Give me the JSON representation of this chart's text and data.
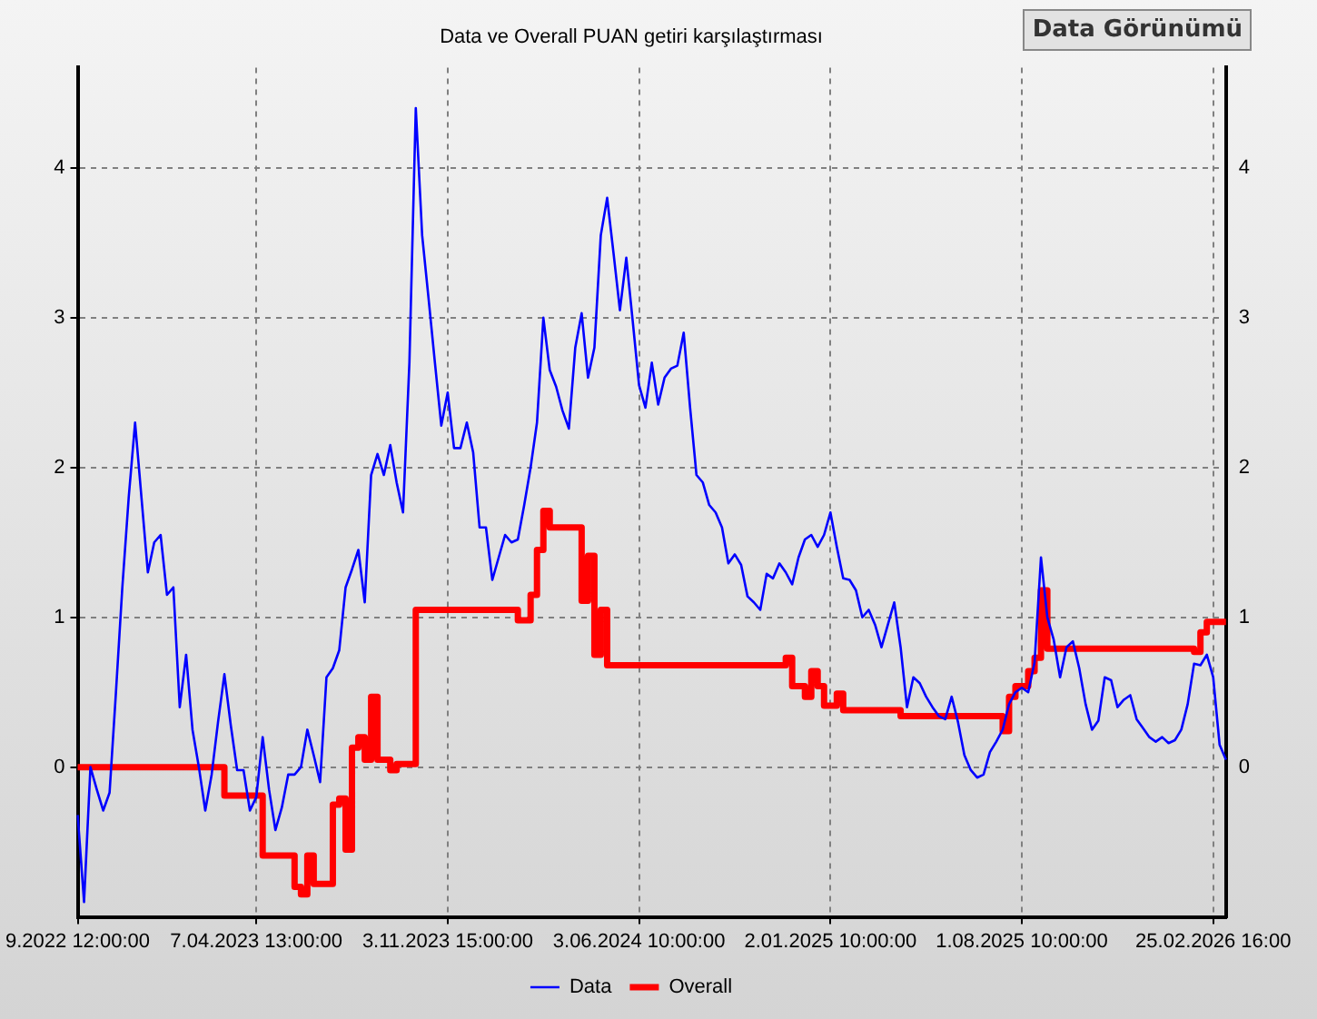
{
  "chart_data": {
    "type": "line",
    "title": "Data ve Overall PUAN getiri karşılaştırması",
    "annotations": [
      "Data Görünümü"
    ],
    "categories": [
      "9.2022 12:00:00",
      null,
      null,
      null,
      null,
      null,
      null,
      null,
      null,
      null,
      null,
      null,
      null,
      null,
      null,
      null,
      null,
      null,
      null,
      null,
      null,
      null,
      null,
      null,
      null,
      null,
      null,
      null,
      "7.04.2023 13:00:00",
      null,
      null,
      null,
      null,
      null,
      null,
      null,
      null,
      null,
      null,
      null,
      null,
      null,
      null,
      null,
      null,
      null,
      null,
      null,
      null,
      null,
      null,
      null,
      null,
      null,
      null,
      null,
      null,
      null,
      "3.11.2023 15:00:00",
      null,
      null,
      null,
      null,
      null,
      null,
      null,
      null,
      null,
      null,
      null,
      null,
      null,
      null,
      null,
      null,
      null,
      null,
      null,
      null,
      null,
      null,
      null,
      null,
      null,
      null,
      null,
      null,
      null,
      "3.06.2024 10:00:00",
      null,
      null,
      null,
      null,
      null,
      null,
      null,
      null,
      null,
      null,
      null,
      null,
      null,
      null,
      null,
      null,
      null,
      null,
      null,
      null,
      null,
      null,
      null,
      null,
      null,
      null,
      null,
      null,
      null,
      "2.01.2025 10:00:00",
      null,
      null,
      null,
      null,
      null,
      null,
      null,
      null,
      null,
      null,
      null,
      null,
      null,
      null,
      null,
      null,
      null,
      null,
      null,
      null,
      null,
      null,
      null,
      null,
      null,
      null,
      null,
      null,
      null,
      "1.08.2025 10:00:00",
      null,
      null,
      null,
      null,
      null,
      null,
      null,
      null,
      null,
      null,
      null,
      null,
      null,
      null,
      null,
      null,
      null,
      null,
      null,
      null,
      null,
      null,
      null,
      null,
      null,
      null,
      null,
      null,
      null,
      "25.02.2026 16:00",
      null,
      null
    ],
    "ylim": [
      -1,
      4.67
    ],
    "yticks": [
      0,
      1,
      2,
      3,
      4
    ],
    "y2lim": [
      -1,
      4.67
    ],
    "y2ticks": [
      0,
      1,
      2,
      3,
      4
    ],
    "grid": true,
    "legend": "bottom",
    "line_style": "solid",
    "marker": "none",
    "series": [
      {
        "name": "Data",
        "color": "#0000ff",
        "type": "line",
        "values": [
          -0.32,
          -0.9,
          0.0,
          -0.15,
          -0.29,
          -0.17,
          0.5,
          1.2,
          1.8,
          2.3,
          1.8,
          1.3,
          1.5,
          1.55,
          1.15,
          1.2,
          0.4,
          0.75,
          0.25,
          0.0,
          -0.29,
          -0.05,
          0.3,
          0.62,
          0.28,
          -0.02,
          -0.02,
          -0.29,
          -0.2,
          0.2,
          -0.15,
          -0.42,
          -0.27,
          -0.05,
          -0.05,
          0.0,
          0.25,
          0.08,
          -0.1,
          0.6,
          0.66,
          0.78,
          1.2,
          1.32,
          1.45,
          1.1,
          1.95,
          2.09,
          1.95,
          2.15,
          1.9,
          1.7,
          2.7,
          4.4,
          3.55,
          3.13,
          2.7,
          2.28,
          2.5,
          2.13,
          2.13,
          2.3,
          2.1,
          1.6,
          1.6,
          1.25,
          1.4,
          1.55,
          1.5,
          1.52,
          1.75,
          2.0,
          2.3,
          3.0,
          2.65,
          2.54,
          2.38,
          2.26,
          2.8,
          3.03,
          2.6,
          2.8,
          3.55,
          3.8,
          3.43,
          3.05,
          3.4,
          2.98,
          2.55,
          2.4,
          2.7,
          2.42,
          2.6,
          2.66,
          2.68,
          2.9,
          2.4,
          1.95,
          1.9,
          1.75,
          1.7,
          1.6,
          1.36,
          1.42,
          1.35,
          1.14,
          1.1,
          1.05,
          1.29,
          1.26,
          1.36,
          1.3,
          1.22,
          1.4,
          1.52,
          1.55,
          1.47,
          1.55,
          1.7,
          1.47,
          1.26,
          1.25,
          1.18,
          1.0,
          1.05,
          0.95,
          0.8,
          0.95,
          1.1,
          0.8,
          0.4,
          0.6,
          0.56,
          0.47,
          0.4,
          0.34,
          0.32,
          0.47,
          0.3,
          0.08,
          -0.02,
          -0.07,
          -0.05,
          0.1,
          0.17,
          0.25,
          0.42,
          0.5,
          0.53,
          0.5,
          0.7,
          1.4,
          1.0,
          0.85,
          0.6,
          0.8,
          0.84,
          0.66,
          0.42,
          0.25,
          0.31,
          0.6,
          0.58,
          0.4,
          0.45,
          0.48,
          0.32,
          0.26,
          0.2,
          0.17,
          0.2,
          0.16,
          0.18,
          0.25,
          0.42,
          0.69,
          0.68,
          0.75,
          0.6,
          0.15,
          0.05
        ]
      },
      {
        "name": "Overall",
        "color": "#ff0000",
        "type": "step",
        "values": [
          0,
          0,
          0,
          0,
          0,
          0,
          0,
          0,
          0,
          0,
          0,
          0,
          0,
          0,
          0,
          0,
          0,
          0,
          0,
          0,
          0,
          0,
          0,
          -0.19,
          -0.19,
          -0.19,
          -0.19,
          -0.19,
          -0.19,
          -0.59,
          -0.59,
          -0.59,
          -0.59,
          -0.59,
          -0.8,
          -0.85,
          -0.59,
          -0.78,
          -0.78,
          -0.78,
          -0.25,
          -0.21,
          -0.55,
          0.13,
          0.2,
          0.05,
          0.47,
          0.05,
          0.05,
          -0.02,
          0.02,
          0.02,
          0.02,
          1.05,
          1.05,
          1.05,
          1.05,
          1.05,
          1.05,
          1.05,
          1.05,
          1.05,
          1.05,
          1.05,
          1.05,
          1.05,
          1.05,
          1.05,
          1.05,
          0.98,
          0.98,
          1.15,
          1.45,
          1.71,
          1.6,
          1.6,
          1.6,
          1.6,
          1.6,
          1.11,
          1.41,
          0.75,
          1.05,
          0.68,
          0.68,
          0.68,
          0.68,
          0.68,
          0.68,
          0.68,
          0.68,
          0.68,
          0.68,
          0.68,
          0.68,
          0.68,
          0.68,
          0.68,
          0.68,
          0.68,
          0.68,
          0.68,
          0.68,
          0.68,
          0.68,
          0.68,
          0.68,
          0.68,
          0.68,
          0.68,
          0.68,
          0.73,
          0.54,
          0.54,
          0.47,
          0.64,
          0.54,
          0.41,
          0.41,
          0.49,
          0.38,
          0.38,
          0.38,
          0.38,
          0.38,
          0.38,
          0.38,
          0.38,
          0.38,
          0.34,
          0.34,
          0.34,
          0.34,
          0.34,
          0.34,
          0.34,
          0.34,
          0.34,
          0.34,
          0.34,
          0.34,
          0.34,
          0.34,
          0.34,
          0.34,
          0.24,
          0.47,
          0.54,
          0.54,
          0.64,
          0.73,
          1.18,
          0.79,
          0.79,
          0.79,
          0.79,
          0.79,
          0.79,
          0.79,
          0.79,
          0.79,
          0.79,
          0.79,
          0.79,
          0.79,
          0.79,
          0.79,
          0.79,
          0.79,
          0.79,
          0.79,
          0.79,
          0.79,
          0.79,
          0.79,
          0.77,
          0.9,
          0.97,
          0.97,
          0.97,
          0.97
        ]
      }
    ]
  }
}
